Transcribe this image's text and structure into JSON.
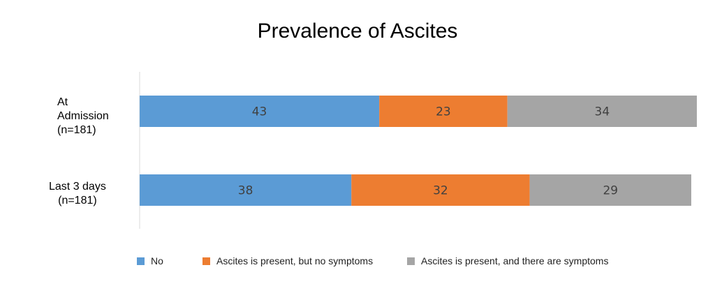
{
  "chart_data": {
    "type": "bar",
    "orientation": "horizontal",
    "stacked": true,
    "title": "Prevalence of Ascites",
    "categories": [
      "At\nAdmission\n(n=181)",
      "Last 3 days\n(n=181)"
    ],
    "series": [
      {
        "name": "No",
        "values": [
          43,
          38
        ],
        "color": "#5b9bd5"
      },
      {
        "name": "Ascites is present, but no symptoms",
        "values": [
          23,
          32
        ],
        "color": "#ed7d31"
      },
      {
        "name": "Ascites is present, and there are symptoms",
        "values": [
          34,
          29
        ],
        "color": "#a5a5a5"
      }
    ],
    "xlim": [
      0,
      100
    ],
    "grid": false,
    "legend": "bottom"
  }
}
